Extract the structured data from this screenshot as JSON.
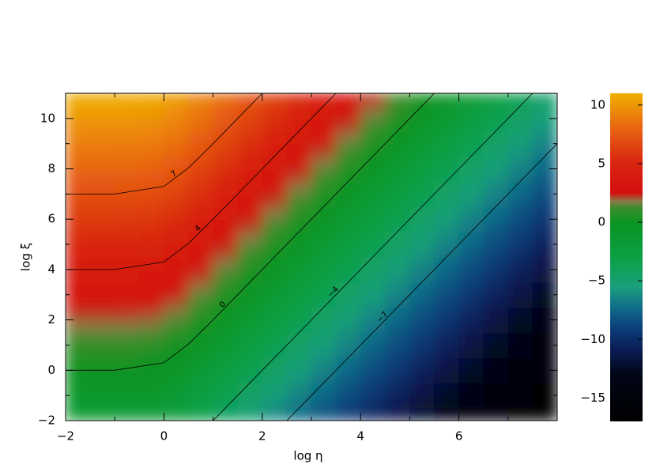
{
  "chart_data": {
    "type": "heatmap",
    "xlabel": "log η",
    "ylabel": "log ξ",
    "xlim": [
      -2,
      8
    ],
    "ylim": [
      -2,
      11
    ],
    "xticks": [
      {
        "value": -2,
        "label": "−2"
      },
      0,
      2,
      4,
      6
    ],
    "yticks": [
      {
        "value": -2,
        "label": "−2"
      },
      0,
      2,
      4,
      6,
      8,
      10
    ],
    "xminor": [
      -1,
      1,
      3,
      5,
      7
    ],
    "yminor": [
      -1,
      1,
      3,
      5,
      7,
      9
    ],
    "zlim": [
      -17,
      11
    ],
    "zticks": [
      {
        "value": -15,
        "label": "−15"
      },
      {
        "value": -10,
        "label": "−10"
      },
      {
        "value": -5,
        "label": "−5"
      },
      0,
      5,
      10
    ],
    "colormap": [
      {
        "value": -17,
        "color": "#000000"
      },
      {
        "value": -13,
        "color": "#020616"
      },
      {
        "value": -11,
        "color": "#0a1a52"
      },
      {
        "value": -9,
        "color": "#0b3f7c"
      },
      {
        "value": -7,
        "color": "#11748a"
      },
      {
        "value": -5.5,
        "color": "#1aa07a"
      },
      {
        "value": -3,
        "color": "#0ca045"
      },
      {
        "value": 0,
        "color": "#0a9422"
      },
      {
        "value": 1.2,
        "color": "#3c8e2c"
      },
      {
        "value": 1.8,
        "color": "#8a7a48"
      },
      {
        "value": 2.5,
        "color": "#d41010"
      },
      {
        "value": 5,
        "color": "#d82410"
      },
      {
        "value": 8,
        "color": "#e86412"
      },
      {
        "value": 11,
        "color": "#f0b000"
      }
    ],
    "x": [
      -1.75,
      -1.25,
      -0.75,
      -0.25,
      0.25,
      0.75,
      1.25,
      1.75,
      2.25,
      2.75,
      3.25,
      3.75,
      4.25,
      4.75,
      5.25,
      5.75,
      6.25,
      6.75,
      7.25,
      7.75
    ],
    "y": [
      -1.75,
      -1.25,
      -0.75,
      -0.25,
      0.25,
      0.75,
      1.25,
      1.75,
      2.25,
      2.75,
      3.25,
      3.75,
      4.25,
      4.75,
      5.25,
      5.75,
      6.25,
      6.75,
      7.25,
      7.75,
      8.25,
      8.75,
      9.25,
      9.75,
      10.25,
      10.75
    ],
    "z": [
      [
        -1.75,
        -1.75,
        -1.76,
        -1.87,
        -2.37,
        -3.26,
        -4.25,
        -5.25,
        -6.25,
        -7.25,
        -8.25,
        -9.25,
        -10.25,
        -11.25,
        -12.25,
        -13.25,
        -14.25,
        -15.25,
        -16.25,
        -17.25
      ],
      [
        -1.25,
        -1.25,
        -1.26,
        -1.37,
        -1.87,
        -2.76,
        -3.75,
        -4.75,
        -5.75,
        -6.75,
        -7.75,
        -8.75,
        -9.75,
        -10.75,
        -11.75,
        -12.75,
        -13.75,
        -14.75,
        -15.75,
        -16.75
      ],
      [
        -0.75,
        -0.75,
        -0.76,
        -0.87,
        -1.37,
        -2.26,
        -3.25,
        -4.25,
        -5.25,
        -6.25,
        -7.25,
        -8.25,
        -9.25,
        -10.25,
        -11.25,
        -12.25,
        -13.25,
        -14.25,
        -15.25,
        -16.25
      ],
      [
        -0.25,
        -0.25,
        -0.26,
        -0.37,
        -0.87,
        -1.76,
        -2.75,
        -3.75,
        -4.75,
        -5.75,
        -6.75,
        -7.75,
        -8.75,
        -9.75,
        -10.75,
        -11.75,
        -12.75,
        -13.75,
        -14.75,
        -15.75
      ],
      [
        0.25,
        0.25,
        0.24,
        0.13,
        -0.37,
        -1.26,
        -2.25,
        -3.25,
        -4.25,
        -5.25,
        -6.25,
        -7.25,
        -8.25,
        -9.25,
        -10.25,
        -11.25,
        -12.25,
        -13.25,
        -14.25,
        -15.25
      ],
      [
        0.75,
        0.75,
        0.74,
        0.63,
        0.13,
        -0.76,
        -1.75,
        -2.75,
        -3.75,
        -4.75,
        -5.75,
        -6.75,
        -7.75,
        -8.75,
        -9.75,
        -10.75,
        -11.75,
        -12.75,
        -13.75,
        -14.75
      ],
      [
        1.25,
        1.25,
        1.24,
        1.13,
        0.63,
        -0.26,
        -1.25,
        -2.25,
        -3.25,
        -4.25,
        -5.25,
        -6.25,
        -7.25,
        -8.25,
        -9.25,
        -10.25,
        -11.25,
        -12.25,
        -13.25,
        -14.25
      ],
      [
        1.75,
        1.75,
        1.74,
        1.63,
        1.13,
        0.24,
        -0.75,
        -1.75,
        -2.75,
        -3.75,
        -4.75,
        -5.75,
        -6.75,
        -7.75,
        -8.75,
        -9.75,
        -10.75,
        -11.75,
        -12.75,
        -13.75
      ],
      [
        2.25,
        2.25,
        2.24,
        2.13,
        1.63,
        0.74,
        -0.25,
        -1.25,
        -2.25,
        -3.25,
        -4.25,
        -5.25,
        -6.25,
        -7.25,
        -8.25,
        -9.25,
        -10.25,
        -11.25,
        -12.25,
        -13.25
      ],
      [
        2.75,
        2.75,
        2.74,
        2.63,
        2.13,
        1.24,
        0.25,
        -0.75,
        -1.75,
        -2.75,
        -3.75,
        -4.75,
        -5.75,
        -6.75,
        -7.75,
        -8.75,
        -9.75,
        -10.75,
        -11.75,
        -12.75
      ],
      [
        3.25,
        3.25,
        3.24,
        3.13,
        2.63,
        1.74,
        0.75,
        -0.25,
        -1.25,
        -2.25,
        -3.25,
        -4.25,
        -5.25,
        -6.25,
        -7.25,
        -8.25,
        -9.25,
        -10.25,
        -11.25,
        -12.25
      ],
      [
        3.75,
        3.75,
        3.74,
        3.63,
        3.13,
        2.24,
        1.25,
        0.25,
        -0.75,
        -1.75,
        -2.75,
        -3.75,
        -4.75,
        -5.75,
        -6.75,
        -7.75,
        -8.75,
        -9.75,
        -10.75,
        -11.75
      ],
      [
        4.25,
        4.25,
        4.24,
        4.13,
        3.63,
        2.74,
        1.75,
        0.75,
        -0.25,
        -1.25,
        -2.25,
        -3.25,
        -4.25,
        -5.25,
        -6.25,
        -7.25,
        -8.25,
        -9.25,
        -10.25,
        -11.25
      ],
      [
        4.75,
        4.75,
        4.74,
        4.63,
        4.13,
        3.24,
        2.25,
        1.25,
        0.25,
        -0.75,
        -1.75,
        -2.75,
        -3.75,
        -4.75,
        -5.75,
        -6.75,
        -7.75,
        -8.75,
        -9.75,
        -10.75
      ],
      [
        5.25,
        5.25,
        5.24,
        5.13,
        4.63,
        3.74,
        2.75,
        1.75,
        0.75,
        -0.25,
        -1.25,
        -2.25,
        -3.25,
        -4.25,
        -5.25,
        -6.25,
        -7.25,
        -8.25,
        -9.25,
        -10.25
      ],
      [
        5.75,
        5.75,
        5.74,
        5.63,
        5.13,
        4.24,
        3.25,
        2.25,
        1.25,
        0.25,
        -0.75,
        -1.75,
        -2.75,
        -3.75,
        -4.75,
        -5.75,
        -6.75,
        -7.75,
        -8.75,
        -9.75
      ],
      [
        6.25,
        6.25,
        6.24,
        6.13,
        5.63,
        4.74,
        3.75,
        2.75,
        1.75,
        0.75,
        -0.25,
        -1.25,
        -2.25,
        -3.25,
        -4.25,
        -5.25,
        -6.25,
        -7.25,
        -8.25,
        -9.25
      ],
      [
        6.75,
        6.75,
        6.74,
        6.63,
        6.13,
        5.24,
        4.25,
        3.25,
        2.25,
        1.25,
        0.25,
        -0.75,
        -1.75,
        -2.75,
        -3.75,
        -4.75,
        -5.75,
        -6.75,
        -7.75,
        -8.75
      ],
      [
        7.25,
        7.25,
        7.24,
        7.13,
        6.63,
        5.74,
        4.75,
        3.75,
        2.75,
        1.75,
        0.75,
        -0.25,
        -1.25,
        -2.25,
        -3.25,
        -4.25,
        -5.25,
        -6.25,
        -7.25,
        -8.25
      ],
      [
        7.75,
        7.75,
        7.74,
        7.63,
        7.13,
        6.24,
        5.25,
        4.25,
        3.25,
        2.25,
        1.25,
        0.25,
        -0.75,
        -1.75,
        -2.75,
        -3.75,
        -4.75,
        -5.75,
        -6.75,
        -7.75
      ],
      [
        8.25,
        8.25,
        8.24,
        8.13,
        7.63,
        6.74,
        5.75,
        4.75,
        3.75,
        2.75,
        1.75,
        0.75,
        -0.25,
        -1.25,
        -2.25,
        -3.25,
        -4.25,
        -5.25,
        -6.25,
        -7.25
      ],
      [
        8.75,
        8.75,
        8.74,
        8.63,
        8.13,
        7.24,
        6.25,
        5.25,
        4.25,
        3.25,
        2.25,
        1.25,
        0.25,
        -0.75,
        -1.75,
        -2.75,
        -3.75,
        -4.75,
        -5.75,
        -6.75
      ],
      [
        9.25,
        9.25,
        9.24,
        9.13,
        8.63,
        7.74,
        6.75,
        5.75,
        4.75,
        3.75,
        2.75,
        1.75,
        0.75,
        -0.25,
        -1.25,
        -2.25,
        -3.25,
        -4.25,
        -5.25,
        -6.25
      ],
      [
        9.75,
        9.75,
        9.74,
        9.63,
        9.13,
        8.24,
        7.25,
        6.25,
        5.25,
        4.25,
        3.25,
        2.25,
        1.25,
        0.25,
        -0.75,
        -1.75,
        -2.75,
        -3.75,
        -4.75,
        -5.75
      ],
      [
        10.25,
        10.25,
        10.24,
        10.13,
        9.63,
        8.74,
        7.75,
        6.75,
        5.75,
        4.75,
        3.75,
        2.75,
        1.75,
        0.75,
        -0.25,
        -1.25,
        -2.25,
        -3.25,
        -4.25,
        -5.25
      ],
      [
        10.75,
        10.75,
        10.74,
        10.63,
        10.13,
        9.24,
        8.25,
        7.25,
        6.25,
        5.25,
        4.25,
        3.25,
        2.25,
        1.25,
        0.25,
        -0.75,
        -1.75,
        -2.75,
        -3.75,
        -4.75
      ]
    ],
    "contours": [
      {
        "level": 7,
        "label": "7",
        "x": [
          -2,
          -1,
          0,
          0.5,
          1,
          1.5,
          2
        ],
        "y": [
          7,
          7,
          7.3,
          8.04,
          9,
          10,
          11
        ]
      },
      {
        "level": 4,
        "label": "4",
        "x": [
          -2,
          -1,
          0,
          0.5,
          1,
          1.5,
          2,
          3,
          3.5
        ],
        "y": [
          4,
          4,
          4.3,
          5.04,
          6,
          7,
          8,
          10,
          11
        ]
      },
      {
        "level": 0,
        "label": "0",
        "x": [
          -2,
          -1,
          0,
          0.5,
          1,
          1.5,
          2,
          3,
          4,
          5,
          5.5
        ],
        "y": [
          0,
          0,
          0.3,
          1.04,
          2,
          3,
          4,
          6,
          8,
          10,
          11
        ]
      },
      {
        "level": -4,
        "label": "−4",
        "x": [
          1,
          1.5,
          2,
          3,
          4,
          5,
          6,
          7,
          7.5
        ],
        "y": [
          -2,
          -1,
          0,
          2,
          4,
          6,
          8,
          10,
          11
        ]
      },
      {
        "level": -7,
        "label": "−7",
        "x": [
          2.5,
          3,
          4,
          5,
          6,
          7,
          8
        ],
        "y": [
          -2,
          -1,
          1,
          3,
          5,
          7,
          9
        ]
      }
    ]
  }
}
